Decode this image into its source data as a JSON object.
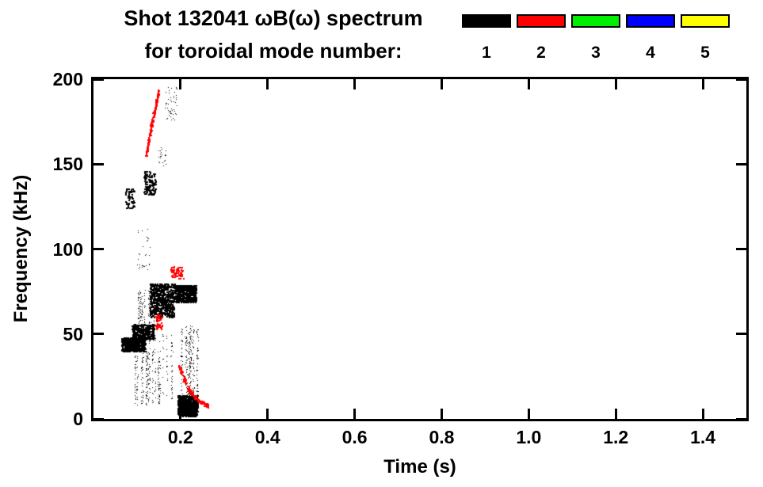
{
  "header": {
    "line1": "Shot 132041 ωB(ω) spectrum",
    "line2": "for toroidal mode number:"
  },
  "legend": {
    "items": [
      {
        "label": "1",
        "color": "#000000"
      },
      {
        "label": "2",
        "color": "#ff0000"
      },
      {
        "label": "3",
        "color": "#00ee00"
      },
      {
        "label": "4",
        "color": "#0000ff"
      },
      {
        "label": "5",
        "color": "#ffff00"
      }
    ]
  },
  "chart_data": {
    "type": "scatter",
    "title": "Shot 132041 ωB(ω) spectrum for toroidal mode number: 1 2 3 4 5",
    "xlabel": "Time (s)",
    "ylabel": "Frequency (kHz)",
    "xlim": [
      0.0,
      1.5
    ],
    "ylim": [
      0,
      200
    ],
    "grid": false,
    "legend_position": "top-right",
    "xticks": [
      {
        "v": 0.2,
        "label": "0.2"
      },
      {
        "v": 0.4,
        "label": "0.4"
      },
      {
        "v": 0.6,
        "label": "0.6"
      },
      {
        "v": 0.8,
        "label": "0.8"
      },
      {
        "v": 1.0,
        "label": "1.0"
      },
      {
        "v": 1.2,
        "label": "1.2"
      },
      {
        "v": 1.4,
        "label": "1.4"
      }
    ],
    "yticks": [
      {
        "v": 0,
        "label": "0"
      },
      {
        "v": 50,
        "label": "50"
      },
      {
        "v": 100,
        "label": "100"
      },
      {
        "v": 150,
        "label": "150"
      },
      {
        "v": 200,
        "label": "200"
      }
    ],
    "series": [
      {
        "name": "n=1",
        "color": "#000000",
        "features": [
          {
            "kind": "cluster",
            "t": [
              0.063,
              0.118
            ],
            "f": [
              40,
              48
            ],
            "n": 600,
            "size": 2
          },
          {
            "kind": "cluster",
            "t": [
              0.088,
              0.138
            ],
            "f": [
              47,
              56
            ],
            "n": 350,
            "size": 2
          },
          {
            "kind": "streaks",
            "t": [
              0.095,
              0.15
            ],
            "f": [
              8,
              40
            ],
            "cols": 10,
            "n": 220,
            "size": 1
          },
          {
            "kind": "streaks",
            "t": [
              0.1,
              0.145
            ],
            "f": [
              56,
              76
            ],
            "cols": 8,
            "n": 160,
            "size": 1
          },
          {
            "kind": "cluster",
            "t": [
              0.128,
              0.185
            ],
            "f": [
              60,
              80
            ],
            "n": 650,
            "size": 2
          },
          {
            "kind": "cluster",
            "t": [
              0.186,
              0.235
            ],
            "f": [
              69,
              79
            ],
            "n": 450,
            "size": 2
          },
          {
            "kind": "cluster",
            "t": [
              0.193,
              0.238
            ],
            "f": [
              2,
              14
            ],
            "n": 900,
            "size": 2
          },
          {
            "kind": "streaks",
            "t": [
              0.188,
              0.245
            ],
            "f": [
              14,
              55
            ],
            "cols": 12,
            "n": 260,
            "size": 1
          },
          {
            "kind": "streaks",
            "t": [
              0.128,
              0.185
            ],
            "f": [
              12,
              50
            ],
            "cols": 8,
            "n": 120,
            "size": 1
          },
          {
            "kind": "cluster",
            "t": [
              0.072,
              0.094
            ],
            "f": [
              124,
              136
            ],
            "n": 60,
            "size": 2
          },
          {
            "kind": "cluster",
            "t": [
              0.114,
              0.142
            ],
            "f": [
              132,
              146
            ],
            "n": 140,
            "size": 2
          },
          {
            "kind": "cluster",
            "t": [
              0.162,
              0.192
            ],
            "f": [
              176,
              196
            ],
            "n": 50,
            "size": 1
          },
          {
            "kind": "cluster",
            "t": [
              0.148,
              0.166
            ],
            "f": [
              148,
              160
            ],
            "n": 25,
            "size": 1
          },
          {
            "kind": "cluster",
            "t": [
              0.1,
              0.13
            ],
            "f": [
              88,
              112
            ],
            "n": 30,
            "size": 1
          }
        ]
      },
      {
        "name": "n=2",
        "color": "#ff0000",
        "features": [
          {
            "kind": "curve",
            "pts": [
              [
                0.12,
                156
              ],
              [
                0.134,
                176
              ],
              [
                0.149,
                193
              ]
            ],
            "n": 160,
            "tj": 0.004,
            "fj": 3,
            "size": 2
          },
          {
            "kind": "cluster",
            "t": [
              0.176,
              0.205
            ],
            "f": [
              83,
              90
            ],
            "n": 70,
            "size": 2
          },
          {
            "kind": "cluster",
            "t": [
              0.142,
              0.158
            ],
            "f": [
              53,
              62
            ],
            "n": 55,
            "size": 2
          },
          {
            "kind": "curve",
            "pts": [
              [
                0.196,
                31
              ],
              [
                0.218,
                17
              ],
              [
                0.24,
                11
              ],
              [
                0.262,
                8
              ]
            ],
            "n": 170,
            "tj": 0.004,
            "fj": 2,
            "size": 2
          }
        ]
      },
      {
        "name": "n=3",
        "color": "#00ee00",
        "features": []
      },
      {
        "name": "n=4",
        "color": "#0000ff",
        "features": []
      },
      {
        "name": "n=5",
        "color": "#ffff00",
        "features": []
      }
    ]
  }
}
